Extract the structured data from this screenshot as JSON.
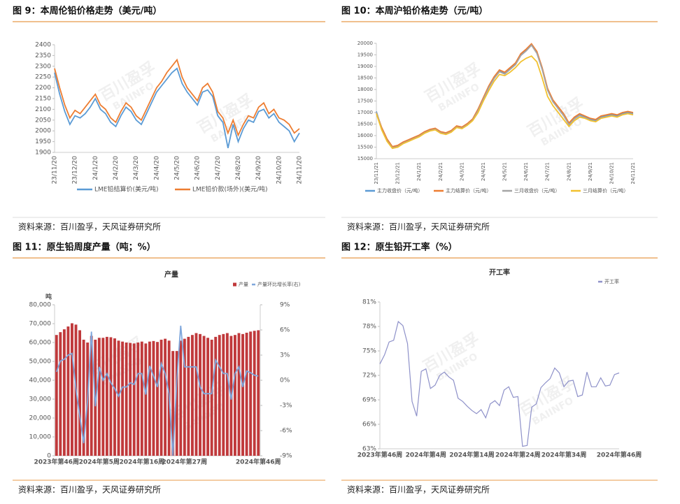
{
  "watermark": {
    "cn": "百川盈孚",
    "en": "BAIINFO"
  },
  "chart_data": [
    {
      "type": "line",
      "title": "图 9：本周伦铅价格走势（美元/吨）",
      "source": "资料来源：百川盈孚，天风证券研究所",
      "categories": [
        "23/11/20",
        null,
        null,
        null,
        "23/12/20",
        null,
        null,
        null,
        "24/1/20",
        null,
        null,
        null,
        "24/2/20",
        null,
        null,
        null,
        "24/3/20",
        null,
        null,
        null,
        "24/4/20",
        null,
        null,
        null,
        "24/5/20",
        null,
        null,
        null,
        "24/6/20",
        null,
        null,
        null,
        "24/7/20",
        null,
        null,
        null,
        "24/8/20",
        null,
        null,
        null,
        "24/9/20",
        null,
        null,
        null,
        "24/10/20",
        null,
        null,
        null,
        "24/11/20"
      ],
      "series": [
        {
          "name": "LME铅结算价(美元/吨)",
          "color": "#5b9bd5",
          "values": [
            2270,
            2170,
            2090,
            2030,
            2070,
            2060,
            2080,
            2110,
            2150,
            2100,
            2080,
            2040,
            2020,
            2070,
            2110,
            2090,
            2050,
            2030,
            2080,
            2130,
            2180,
            2210,
            2240,
            2270,
            2290,
            2220,
            2180,
            2150,
            2120,
            2180,
            2190,
            2160,
            2070,
            2040,
            1920,
            2030,
            1950,
            2010,
            2050,
            2040,
            2090,
            2100,
            2060,
            2080,
            2040,
            2020,
            2000,
            1950,
            1990
          ]
        },
        {
          "name": "LME铅价款(场外)(美元/吨)",
          "color": "#ed7d31",
          "values": [
            2290,
            2200,
            2120,
            2060,
            2095,
            2080,
            2110,
            2140,
            2170,
            2120,
            2100,
            2060,
            2040,
            2090,
            2130,
            2110,
            2070,
            2050,
            2100,
            2150,
            2200,
            2230,
            2270,
            2300,
            2330,
            2250,
            2200,
            2170,
            2140,
            2200,
            2220,
            2180,
            2090,
            2060,
            1990,
            2050,
            1980,
            2030,
            2070,
            2060,
            2110,
            2130,
            2080,
            2100,
            2060,
            2050,
            2030,
            1990,
            2010
          ]
        }
      ],
      "ylim": [
        1900,
        2400
      ],
      "yticks": [
        1900,
        1950,
        2000,
        2050,
        2100,
        2150,
        2200,
        2250,
        2300,
        2350,
        2400
      ],
      "grid": false
    },
    {
      "type": "line",
      "title": "图 10：本周沪铅价格走势（元/吨）",
      "source": "资料来源：百川盈孚，天风证券研究所",
      "categories": [
        "23/11/21",
        null,
        null,
        null,
        "23/12/21",
        null,
        null,
        null,
        "24/1/21",
        null,
        null,
        null,
        "24/2/21",
        null,
        null,
        null,
        "24/3/21",
        null,
        null,
        null,
        "24/4/21",
        null,
        null,
        null,
        "24/5/21",
        null,
        null,
        null,
        "24/6/21",
        null,
        null,
        null,
        "24/7/21",
        null,
        null,
        null,
        "24/8/21",
        null,
        null,
        null,
        "24/9/21",
        null,
        null,
        null,
        "24/10/21",
        null,
        null,
        null,
        "24/11/21"
      ],
      "series": [
        {
          "name": "主力收盘价（元/吨）",
          "color": "#5b9bd5",
          "values": [
            17050,
            16300,
            15800,
            15500,
            15550,
            15700,
            15800,
            15900,
            16000,
            16150,
            16250,
            16300,
            16150,
            16100,
            16200,
            16400,
            16350,
            16500,
            16700,
            17100,
            17600,
            18100,
            18500,
            18800,
            18700,
            18900,
            19100,
            19500,
            19700,
            19950,
            19600,
            18900,
            18000,
            17500,
            17200,
            16900,
            16500,
            16750,
            16900,
            16800,
            16700,
            16650,
            16800,
            16850,
            16900,
            16850,
            16950,
            17000,
            16950
          ]
        },
        {
          "name": "主力结算价（元/吨）",
          "color": "#ed7d31",
          "values": [
            17000,
            16350,
            15850,
            15520,
            15580,
            15720,
            15820,
            15920,
            16020,
            16170,
            16270,
            16320,
            16170,
            16120,
            16220,
            16420,
            16370,
            16520,
            16720,
            17150,
            17650,
            18150,
            18550,
            18850,
            18750,
            18950,
            19150,
            19550,
            19750,
            19980,
            19650,
            18950,
            18050,
            17550,
            17250,
            16950,
            16550,
            16800,
            16950,
            16850,
            16750,
            16700,
            16850,
            16900,
            16950,
            16900,
            17000,
            17050,
            17000
          ]
        },
        {
          "name": "三月收盘价（元/吨）",
          "color": "#a5a5a5",
          "values": [
            17020,
            16270,
            15770,
            15470,
            15520,
            15670,
            15770,
            15870,
            15970,
            16120,
            16220,
            16270,
            16120,
            16070,
            16170,
            16370,
            16320,
            16470,
            16670,
            17070,
            17570,
            18070,
            18470,
            18770,
            18670,
            18870,
            19070,
            19470,
            19670,
            19920,
            19570,
            18870,
            17970,
            17470,
            17170,
            16870,
            16470,
            16720,
            16870,
            16770,
            16670,
            16620,
            16770,
            16820,
            16870,
            16820,
            16920,
            16970,
            16920
          ]
        },
        {
          "name": "三月结算价（元/吨）",
          "color": "#f2c12e",
          "values": [
            16950,
            16250,
            15750,
            15450,
            15500,
            15650,
            15750,
            15850,
            15950,
            16100,
            16200,
            16250,
            16100,
            16050,
            16150,
            16350,
            16300,
            16450,
            16650,
            17000,
            17500,
            17950,
            18350,
            18650,
            18600,
            18750,
            18950,
            19200,
            19350,
            19450,
            19200,
            18500,
            17700,
            17300,
            17000,
            16700,
            16400,
            16650,
            16800,
            16750,
            16650,
            16600,
            16750,
            16800,
            16850,
            16800,
            16900,
            16950,
            16900
          ]
        }
      ],
      "ylim": [
        15000,
        20000
      ],
      "yticks": [
        15000,
        15500,
        16000,
        16500,
        17000,
        17500,
        18000,
        18500,
        19000,
        19500,
        20000
      ],
      "grid": false
    },
    {
      "type": "combo",
      "title": "图 11：原生铅周度产量（吨；%）",
      "subtitle": "产量",
      "y_unit": "吨",
      "source": "资料来源：百川盈孚，天风证券研究所",
      "categories": [
        "2023年第46周",
        null,
        null,
        null,
        null,
        null,
        null,
        null,
        null,
        null,
        null,
        "2024年第5周",
        null,
        null,
        null,
        null,
        null,
        null,
        null,
        null,
        null,
        null,
        "2024年第16周",
        null,
        null,
        null,
        null,
        null,
        null,
        null,
        null,
        null,
        null,
        "2024年第27周",
        null,
        null,
        null,
        null,
        null,
        null,
        null,
        null,
        null,
        null,
        null,
        null,
        null,
        null,
        null,
        null,
        null,
        null,
        "2024年第46周"
      ],
      "series": [
        {
          "name": "产量",
          "type": "bar",
          "color": "#c0393b",
          "values": [
            64000,
            65500,
            67000,
            68500,
            70200,
            69500,
            66500,
            61500,
            60000,
            63500,
            61500,
            62500,
            62500,
            63000,
            62800,
            62200,
            61000,
            60500,
            60000,
            59800,
            59500,
            60000,
            60500,
            59500,
            60500,
            60800,
            60300,
            61500,
            62000,
            61000,
            55500,
            55500,
            61000,
            62000,
            63000,
            64000,
            65000,
            64500,
            63500,
            62500,
            61500,
            63000,
            64000,
            64500,
            65000,
            63500,
            64000,
            65000,
            64500,
            65200,
            65800,
            66200,
            66500
          ]
        },
        {
          "name": "产量环比增长率(右)",
          "type": "line",
          "axis": "y2",
          "color": "#7fa7dc",
          "values": [
            1.0,
            2.3,
            2.5,
            3.0,
            3.2,
            -1.0,
            -4.3,
            -7.5,
            -2.4,
            5.8,
            -3.1,
            1.6,
            0.0,
            0.8,
            -0.3,
            -1.0,
            -1.9,
            -0.8,
            -0.8,
            -0.3,
            -0.5,
            0.8,
            0.8,
            -1.7,
            1.7,
            0.5,
            -0.8,
            2.0,
            0.8,
            -1.6,
            -9.0,
            0.0,
            6.5,
            1.6,
            1.6,
            1.6,
            1.6,
            -0.8,
            -1.6,
            -1.6,
            -1.6,
            2.4,
            1.6,
            0.8,
            0.8,
            -2.3,
            0.8,
            1.6,
            -0.8,
            1.1,
            0.9,
            0.6,
            0.5
          ]
        }
      ],
      "ylim": [
        0,
        80000
      ],
      "yticks": [
        0,
        {
          "value": 10000,
          "label": "10,000"
        },
        {
          "value": 20000,
          "label": "20,000"
        },
        {
          "value": 30000,
          "label": "30,000"
        },
        {
          "value": 40000,
          "label": "40,000"
        },
        {
          "value": 50000,
          "label": "50,000"
        },
        {
          "value": 60000,
          "label": "60,000"
        },
        {
          "value": 70000,
          "label": "70,000"
        },
        {
          "value": 80000,
          "label": "80,000"
        }
      ],
      "y2lim": [
        -9,
        9
      ],
      "y2ticks": [
        {
          "value": -9,
          "label": "-9%"
        },
        {
          "value": -6,
          "label": "-6%"
        },
        {
          "value": -3,
          "label": "-3%"
        },
        {
          "value": 0,
          "label": "0%"
        },
        {
          "value": 3,
          "label": "3%"
        },
        {
          "value": 6,
          "label": "6%"
        },
        {
          "value": 9,
          "label": "9%"
        }
      ],
      "grid": false
    },
    {
      "type": "line",
      "title": "图 12：原生铅开工率（%）",
      "subtitle": "开工率",
      "source": "资料来源：百川盈孚，天风证券研究所",
      "categories": [
        "2023年第46周",
        null,
        null,
        null,
        null,
        null,
        null,
        null,
        null,
        null,
        "2024年第4周",
        null,
        null,
        null,
        null,
        null,
        null,
        null,
        null,
        null,
        "2024年第14周",
        null,
        null,
        null,
        null,
        null,
        null,
        null,
        null,
        null,
        "2024年第24周",
        null,
        null,
        null,
        null,
        null,
        null,
        null,
        null,
        null,
        "2024年第34周",
        null,
        null,
        null,
        null,
        null,
        null,
        null,
        null,
        null,
        null,
        null,
        "2024年第46周"
      ],
      "series": [
        {
          "name": "开工率",
          "color": "#8e91c9",
          "values": [
            73.4,
            74.5,
            76.1,
            76.3,
            78.6,
            78.1,
            75.9,
            68.8,
            67.0,
            72.5,
            72.8,
            70.4,
            70.8,
            72.0,
            72.4,
            71.8,
            71.4,
            69.2,
            68.8,
            68.2,
            67.7,
            67.3,
            67.8,
            66.8,
            68.5,
            68.9,
            68.3,
            70.2,
            70.6,
            69.3,
            69.4,
            63.3,
            63.4,
            68.1,
            68.5,
            70.5,
            71.1,
            71.6,
            72.9,
            72.3,
            70.6,
            71.3,
            71.4,
            69.4,
            69.6,
            72.4,
            70.6,
            70.6,
            71.7,
            70.7,
            70.8,
            72.1,
            72.3
          ]
        }
      ],
      "ylim": [
        63,
        81
      ],
      "yticks": [
        {
          "value": 63,
          "label": "63%"
        },
        {
          "value": 66,
          "label": "66%"
        },
        {
          "value": 69,
          "label": "69%"
        },
        {
          "value": 72,
          "label": "72%"
        },
        {
          "value": 75,
          "label": "75%"
        },
        {
          "value": 78,
          "label": "78%"
        },
        {
          "value": 81,
          "label": "81%"
        }
      ],
      "grid": false
    }
  ]
}
